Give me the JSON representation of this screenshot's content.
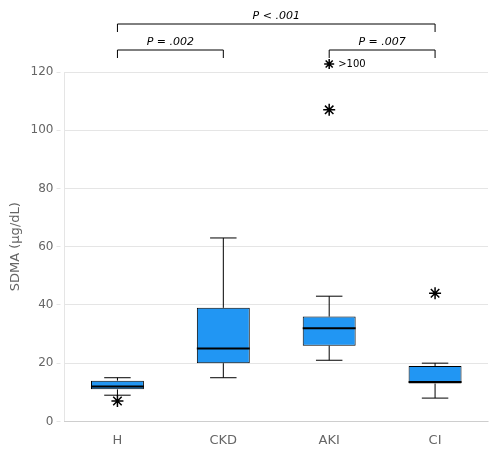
{
  "chart_data": {
    "type": "box",
    "categories": [
      "H",
      "CKD",
      "AKI",
      "CI"
    ],
    "q1": [
      11,
      20,
      26,
      13
    ],
    "median": [
      12,
      25,
      32,
      13.5
    ],
    "q3": [
      14,
      39,
      36,
      19
    ],
    "whislo": [
      9,
      15,
      21,
      8
    ],
    "whishi": [
      15,
      63,
      43,
      20
    ],
    "outliers": [
      [
        7
      ],
      [],
      [
        107
      ],
      [
        44
      ]
    ],
    "color": "#2196F3",
    "ylabel": "SDMA (μg/dL)",
    "ylim": [
      0,
      120
    ],
    "yticks": [
      0,
      20,
      40,
      60,
      80,
      100,
      120
    ],
    "grid": true,
    "annotations": [
      {
        "text": "P < .001",
        "from": "H",
        "to": "CI"
      },
      {
        "text": "P = .002",
        "from": "H",
        "to": "CKD"
      },
      {
        "text": "P = .007",
        "from": "AKI",
        "to": "CI"
      },
      {
        "text": ">100",
        "at": "AKI",
        "marker": "star"
      }
    ]
  }
}
